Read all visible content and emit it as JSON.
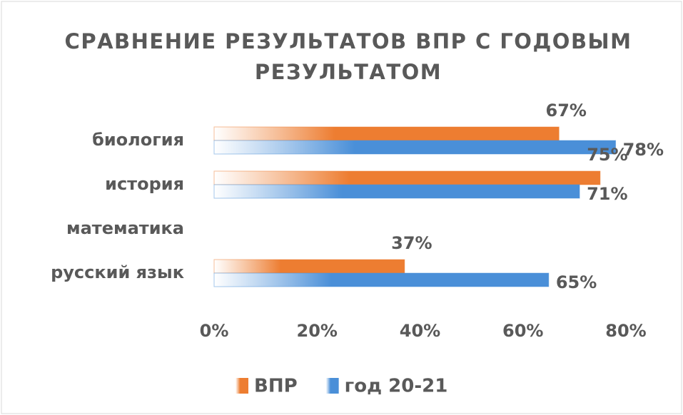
{
  "chart_data": {
    "type": "hbar",
    "title": [
      "СРАВНЕНИЕ РЕЗУЛЬТАТОВ ВПР С ГОДОВЫМ",
      "РЕЗУЛЬТАТОМ"
    ],
    "categories": [
      "биология",
      "история",
      "математика",
      "русский язык"
    ],
    "series": [
      {
        "name": "ВПР",
        "color": "#ed7d31",
        "values": [
          67,
          75,
          null,
          37
        ],
        "value_labels": [
          "67%",
          "75%",
          null,
          "37%"
        ]
      },
      {
        "name": "год 20-21",
        "color": "#4a8fd8",
        "values": [
          78,
          71,
          null,
          65
        ],
        "value_labels": [
          "78%",
          "71%",
          null,
          "65%"
        ]
      }
    ],
    "xlim": [
      0,
      80
    ],
    "xticks": [
      {
        "value": 0,
        "label": "0%"
      },
      {
        "value": 20,
        "label": "20%"
      },
      {
        "value": 40,
        "label": "40%"
      },
      {
        "value": 60,
        "label": "60%"
      },
      {
        "value": 80,
        "label": "80%"
      }
    ],
    "legend": "bottom"
  }
}
